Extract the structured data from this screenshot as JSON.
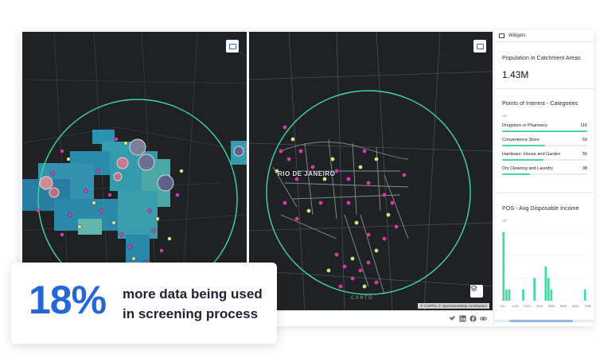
{
  "map_left": {
    "settings_icon": "panel-toggle-icon"
  },
  "map_right": {
    "city_label": "RIO DE JANEIRO",
    "watermark": "CARTO",
    "attribution": "© CARTO, © OpenStreetMap contributors",
    "settings_icon": "panel-toggle-icon",
    "layers_icon": "layers-icon"
  },
  "footer": {
    "icons": [
      "twitter-icon",
      "linkedin-icon",
      "facebook-icon",
      "link-icon"
    ]
  },
  "panel": {
    "header": "Widgets",
    "population": {
      "title": "Population in Catchment Areas",
      "value": "1.43M"
    },
    "poi": {
      "title": "Points of Interest - Categories",
      "filter": "All",
      "max": 116,
      "categories": [
        {
          "name": "Drugstore or Pharmacy",
          "value": 116
        },
        {
          "name": "Convenience Store",
          "value": 59
        },
        {
          "name": "Hardware, House and Garden",
          "value": 56
        },
        {
          "name": "Dry Cleaning and Laundry",
          "value": 38
        }
      ]
    },
    "income": {
      "title": "POS - Avg Disposable Income",
      "filter": "All",
      "ymax_label": "6",
      "x_labels": [
        "12k",
        "142k",
        "267k",
        "331k",
        "455k",
        "558k",
        "663k",
        "768k"
      ],
      "bars": [
        6,
        1,
        1,
        0,
        0,
        0,
        0,
        1,
        0,
        0,
        0,
        2,
        0,
        0,
        0,
        3,
        2,
        1,
        0,
        0,
        0,
        0,
        0,
        0,
        0,
        0,
        0,
        0,
        0,
        1
      ]
    }
  },
  "callout": {
    "percent": "18%",
    "line1": "more data being used",
    "line2": "in screening process"
  },
  "colors": {
    "accent": "#2467d8",
    "ring": "#3ddc97",
    "bar": "#47d9a0",
    "poi_magenta": "#d63bb0",
    "poi_lime": "#c8e68a",
    "map_bg": "#1f2124"
  }
}
